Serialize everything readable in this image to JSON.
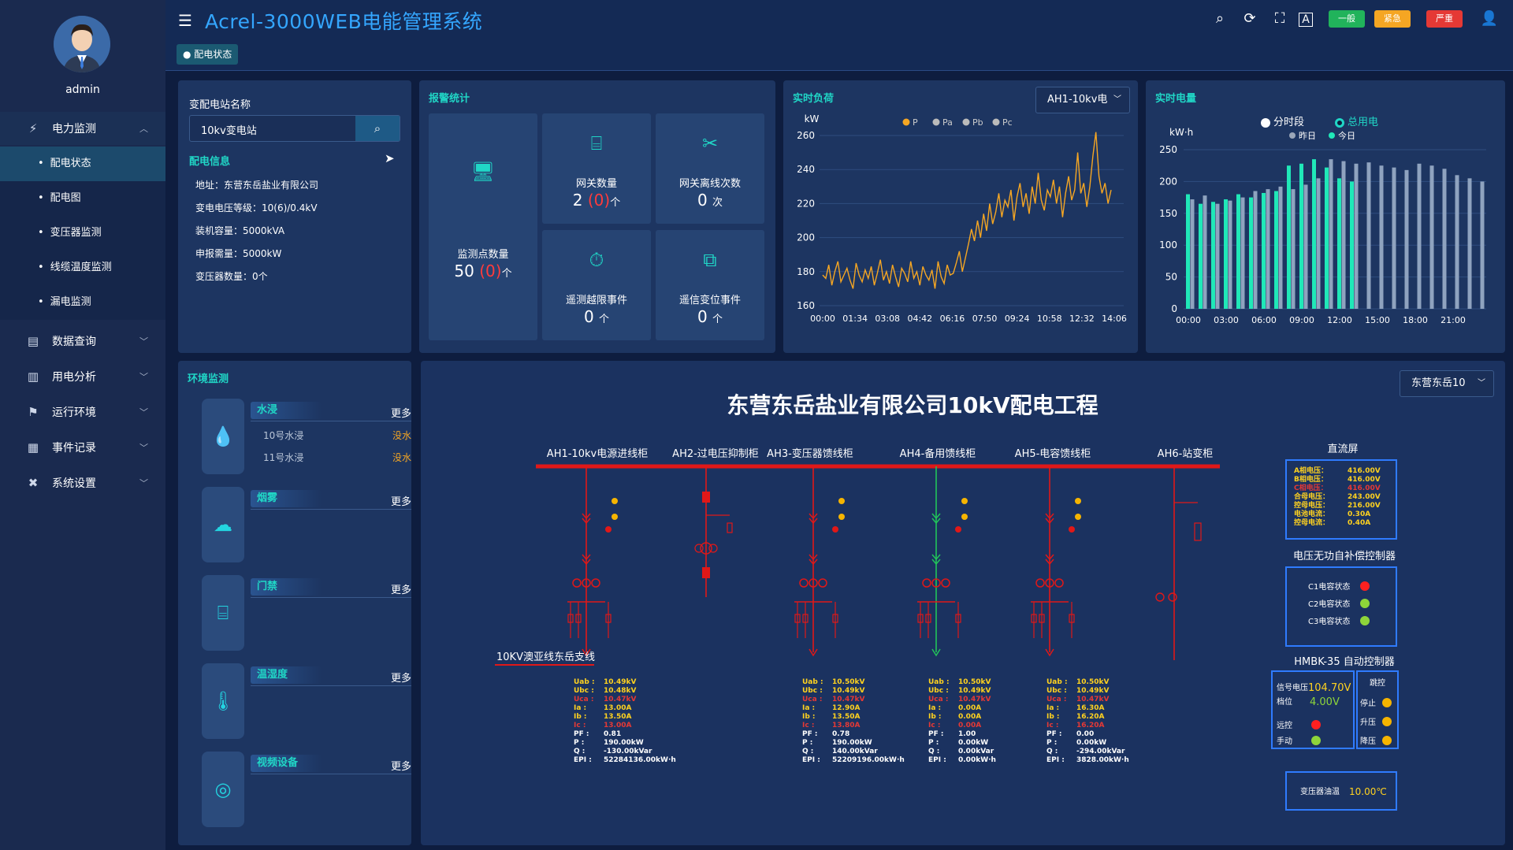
{
  "app": {
    "title": "Acrel-3000WEB电能管理系统",
    "breadcrumb": "配电状态"
  },
  "user": {
    "name": "admin"
  },
  "sidebar": {
    "menus": [
      {
        "label": "电力监测",
        "icon": "power-monitor-icon"
      },
      {
        "label": "数据查询",
        "icon": "data-query-icon"
      },
      {
        "label": "用电分析",
        "icon": "analysis-icon"
      },
      {
        "label": "运行环境",
        "icon": "environment-icon"
      },
      {
        "label": "事件记录",
        "icon": "event-record-icon"
      },
      {
        "label": "系统设置",
        "icon": "settings-icon"
      }
    ],
    "submenus": [
      "配电状态",
      "配电图",
      "变压器监测",
      "线缆温度监测",
      "漏电监测"
    ]
  },
  "toolbar": {
    "level_general": "一般",
    "level_urgent": "紧急",
    "level_severe": "严重",
    "colors": {
      "general": "#21b35b",
      "urgent": "#f5a623",
      "severe": "#e53935"
    }
  },
  "station": {
    "name_label": "变配电站名称",
    "search_value": "10kv变电站",
    "info_title": "配电信息",
    "lines": [
      "地址：东营东岳盐业有限公司",
      "变电电压等级：10(6)/0.4kV",
      "装机容量：5000kVA",
      "申报需量：5000kW",
      "变压器数量：0个"
    ]
  },
  "alarm": {
    "title": "报警统计",
    "monitor": {
      "label": "监测点数量",
      "value": "50",
      "alarm": "(0)",
      "unit": "个"
    },
    "gateway": {
      "label": "网关数量",
      "value": "2",
      "alarm": "(0)",
      "unit": "个"
    },
    "offline": {
      "label": "网关离线次数",
      "value": "0",
      "unit": "次"
    },
    "overlimit": {
      "label": "遥测越限事件",
      "value": "0",
      "unit": "个"
    },
    "change": {
      "label": "遥信变位事件",
      "value": "0",
      "unit": "个"
    }
  },
  "load": {
    "title": "实时负荷",
    "selector": "AH1-10kv电",
    "chart_data": {
      "type": "line",
      "ylabel": "kW",
      "ylim": [
        160,
        260
      ],
      "yticks": [
        160,
        180,
        200,
        220,
        240,
        260
      ],
      "xticks": [
        "00:00",
        "01:34",
        "03:08",
        "04:42",
        "06:16",
        "07:50",
        "09:24",
        "10:58",
        "12:32",
        "14:06"
      ],
      "legend": [
        "P",
        "Pa",
        "Pb",
        "Pc"
      ],
      "series": [
        {
          "name": "P",
          "values": [
            178,
            176,
            184,
            172,
            180,
            186,
            174,
            178,
            182,
            175,
            170,
            185,
            178,
            174,
            181,
            176,
            183,
            172,
            179,
            187,
            175,
            180,
            173,
            184,
            177,
            171,
            182,
            179,
            174,
            186,
            176,
            180,
            172,
            183,
            178,
            175,
            181,
            170,
            186,
            177,
            173,
            184,
            178,
            179,
            185,
            192,
            180,
            188,
            196,
            205,
            198,
            210,
            200,
            214,
            204,
            220,
            208,
            215,
            226,
            212,
            222,
            218,
            228,
            210,
            224,
            232,
            218,
            226,
            214,
            230,
            220,
            238,
            222,
            216,
            228,
            224,
            234,
            220,
            230,
            212,
            226,
            236,
            222,
            228,
            250,
            226,
            232,
            218,
            230,
            248,
            262,
            236,
            226,
            232,
            220,
            228
          ]
        }
      ]
    }
  },
  "power": {
    "title": "实时电量",
    "opt_period": "分时段",
    "opt_total": "总用电",
    "chart_data": {
      "type": "bar",
      "ylabel": "kW·h",
      "ylim": [
        0,
        250
      ],
      "yticks": [
        0,
        50,
        100,
        150,
        200,
        250
      ],
      "xticks": [
        "00:00",
        "03:00",
        "06:00",
        "09:00",
        "12:00",
        "15:00",
        "18:00",
        "21:00"
      ],
      "series": [
        {
          "name": "昨日",
          "values": [
            172,
            178,
            165,
            170,
            175,
            185,
            188,
            192,
            188,
            195,
            205,
            235,
            232,
            228,
            230,
            225,
            222,
            218,
            228,
            225,
            220,
            210,
            205,
            200
          ]
        },
        {
          "name": "今日",
          "values": [
            180,
            165,
            168,
            172,
            180,
            175,
            182,
            185,
            225,
            228,
            235,
            222,
            205,
            200
          ]
        }
      ]
    }
  },
  "env": {
    "title": "环境监测",
    "more": "更多",
    "water": {
      "label": "水浸",
      "rows": [
        {
          "name": "10号水浸",
          "status": "没水"
        },
        {
          "name": "11号水浸",
          "status": "没水"
        }
      ]
    },
    "smoke": {
      "label": "烟雾"
    },
    "door": {
      "label": "门禁"
    },
    "temp": {
      "label": "温湿度"
    },
    "video": {
      "label": "视频设备"
    }
  },
  "diagram": {
    "title": "东营东岳盐业有限公司10kV配电工程",
    "selector": "东营东岳10",
    "cabinets": [
      "AH1-10kv电源进线柜",
      "AH2-过电压抑制柜",
      "AH3-变压器馈线柜",
      "AH4-备用馈线柜",
      "AH5-电容馈线柜",
      "AH6-站变柜"
    ],
    "line_label": "10KV澳亚线东岳支线",
    "readings": [
      {
        "uab": "10.49kV",
        "ubc": "10.48kV",
        "uca": "10.47kV",
        "ia": "13.00A",
        "ib": "13.50A",
        "ic": "13.00A",
        "pf": "0.81",
        "p": "190.00kW",
        "q": "-130.00kVar",
        "epi": "52284136.00kW·h"
      },
      {
        "uab": "10.50kV",
        "ubc": "10.49kV",
        "uca": "10.47kV",
        "ia": "12.90A",
        "ib": "13.50A",
        "ic": "13.80A",
        "pf": "0.78",
        "p": "190.00kW",
        "q": "140.00kVar",
        "epi": "52209196.00kW·h"
      },
      {
        "uab": "10.50kV",
        "ubc": "10.49kV",
        "uca": "10.47kV",
        "ia": "0.00A",
        "ib": "0.00A",
        "ic": "0.00A",
        "pf": "1.00",
        "p": "0.00kW",
        "q": "0.00kVar",
        "epi": "0.00kW·h"
      },
      {
        "uab": "10.50kV",
        "ubc": "10.49kV",
        "uca": "10.47kV",
        "ia": "16.30A",
        "ib": "16.20A",
        "ic": "16.20A",
        "pf": "0.00",
        "p": "0.00kW",
        "q": "-294.00kVar",
        "epi": "3828.00kW·h"
      }
    ],
    "reading_labels": [
      "Uab :",
      "Ubc :",
      "Uca :",
      "Ia :",
      "Ib :",
      "Ic :",
      "PF :",
      "P :",
      "Q :",
      "EPI :"
    ],
    "dc": {
      "title": "直流屏",
      "rows": [
        {
          "k": "A相电压：",
          "v": "416.00V"
        },
        {
          "k": "B相电压：",
          "v": "416.00V"
        },
        {
          "k": "C相电压：",
          "v": "416.00V"
        },
        {
          "k": "合母电压：",
          "v": "243.00V"
        },
        {
          "k": "控母电压：",
          "v": "216.00V"
        },
        {
          "k": "电池电流：",
          "v": "0.30A"
        },
        {
          "k": "控母电流：",
          "v": "0.40A"
        }
      ]
    },
    "compensator": {
      "title": "电压无功自补偿控制器",
      "rows": [
        "C1电容状态",
        "C2电容状态",
        "C3电容状态"
      ]
    },
    "hmbk": {
      "title": "HMBK-35 自动控制器",
      "signal_label": "信号电压",
      "signal_value": "104.70V",
      "gear_label": "档位",
      "gear_value": "4.00V",
      "remote": "远控",
      "manual": "手动",
      "jump": "跳控",
      "stop": "停止",
      "up": "升压",
      "down": "降压"
    },
    "transformer": {
      "label": "变压器油温",
      "value": "10.00℃"
    }
  }
}
